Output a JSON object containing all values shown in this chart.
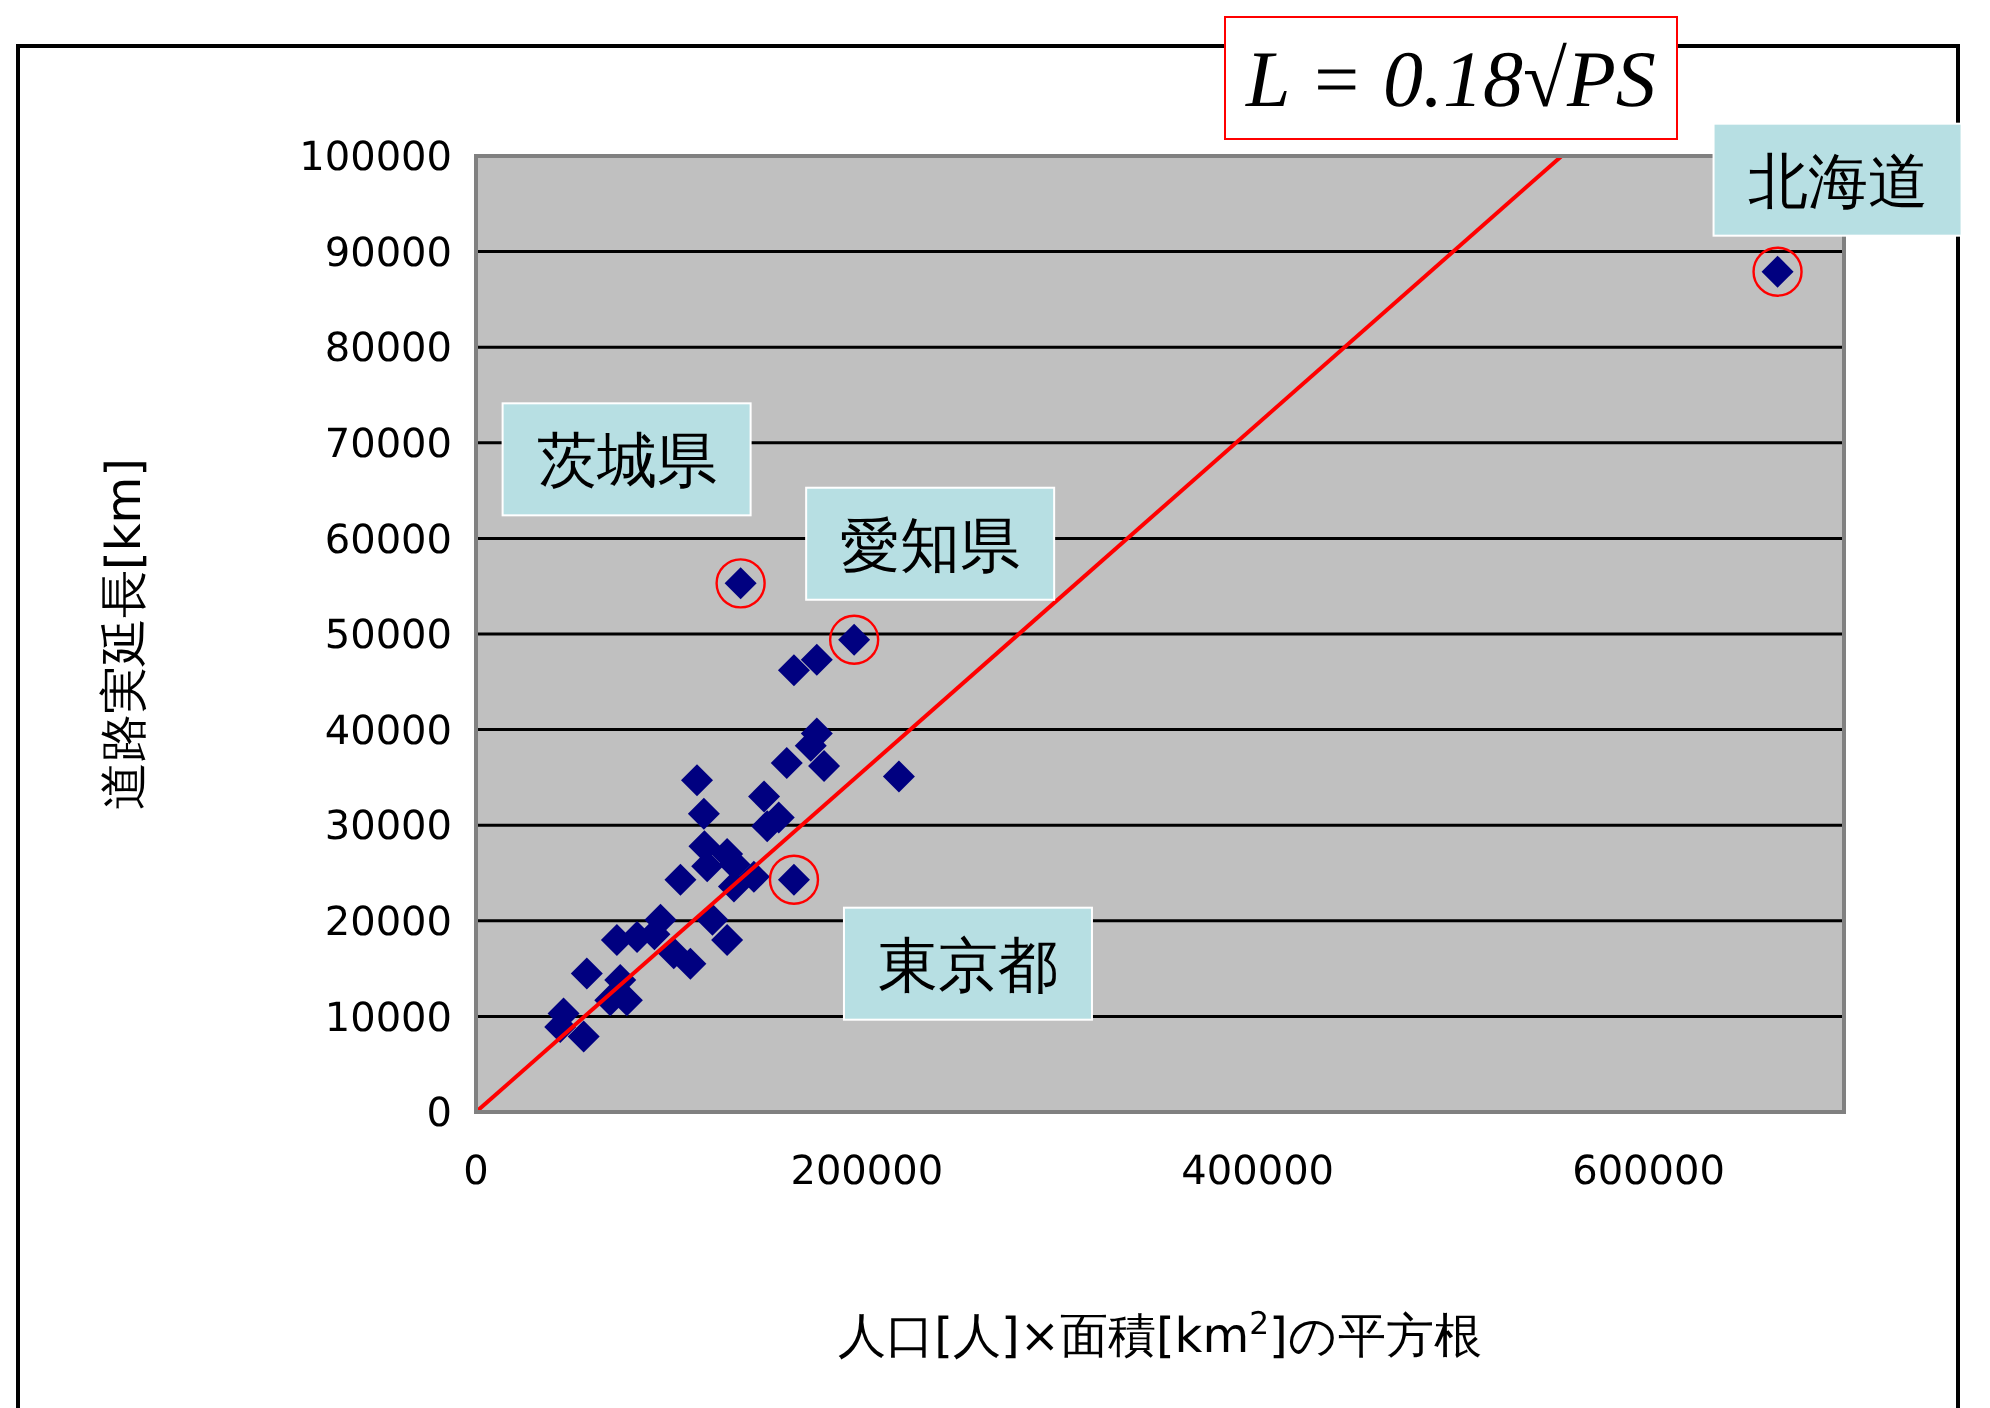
{
  "chart_data": {
    "type": "scatter",
    "xlabel": "人口[人]×面積[km$^{2}$]の平方根",
    "ylabel": "道路実延長[km]",
    "xlim": [
      0,
      700000
    ],
    "ylim": [
      0,
      100000
    ],
    "xticks": [
      0,
      200000,
      400000,
      600000
    ],
    "yticks": [
      0,
      10000,
      20000,
      30000,
      40000,
      50000,
      60000,
      70000,
      80000,
      90000,
      100000
    ],
    "grid": "y",
    "legend": false,
    "marker": "diamond",
    "series": [
      {
        "type": "scatter",
        "color": "#000080",
        "x": [
          135400,
          193500,
          162700,
          174400,
          174400,
          159000,
          178100,
          171300,
          216400,
          113100,
          116600,
          147400,
          149000,
          162700,
          128500,
          104600,
          118300,
          142200,
          132000,
          128500,
          109700,
          94400,
          72100,
          82400,
          56700,
          101200,
          73800,
          77200,
          44800,
          55100,
          43100,
          68700,
          91300,
          121000,
          132300,
          154900,
          116900,
          666000
        ],
        "values": [
          55300,
          49400,
          46200,
          47300,
          39600,
          36500,
          36200,
          38300,
          35100,
          34700,
          31200,
          33000,
          29900,
          24300,
          27000,
          24300,
          25700,
          24600,
          23600,
          18000,
          15500,
          20100,
          18000,
          18300,
          14500,
          16600,
          13800,
          11700,
          10300,
          7900,
          8900,
          11700,
          18600,
          20100,
          25900,
          30800,
          27800,
          87900
        ]
      },
      {
        "type": "line",
        "name": "L = 0.18√PS",
        "color": "#ff0000",
        "marker": "none",
        "x": [
          0,
          555556
        ],
        "values": [
          0,
          100000
        ]
      }
    ],
    "annotations": [
      {
        "text": "茨城県",
        "x": 135400,
        "y": 55300
      },
      {
        "text": "愛知県",
        "x": 193500,
        "y": 49400
      },
      {
        "text": "東京都",
        "x": 162700,
        "y": 24300
      },
      {
        "text": "北海道",
        "x": 666000,
        "y": 87900
      }
    ]
  }
}
